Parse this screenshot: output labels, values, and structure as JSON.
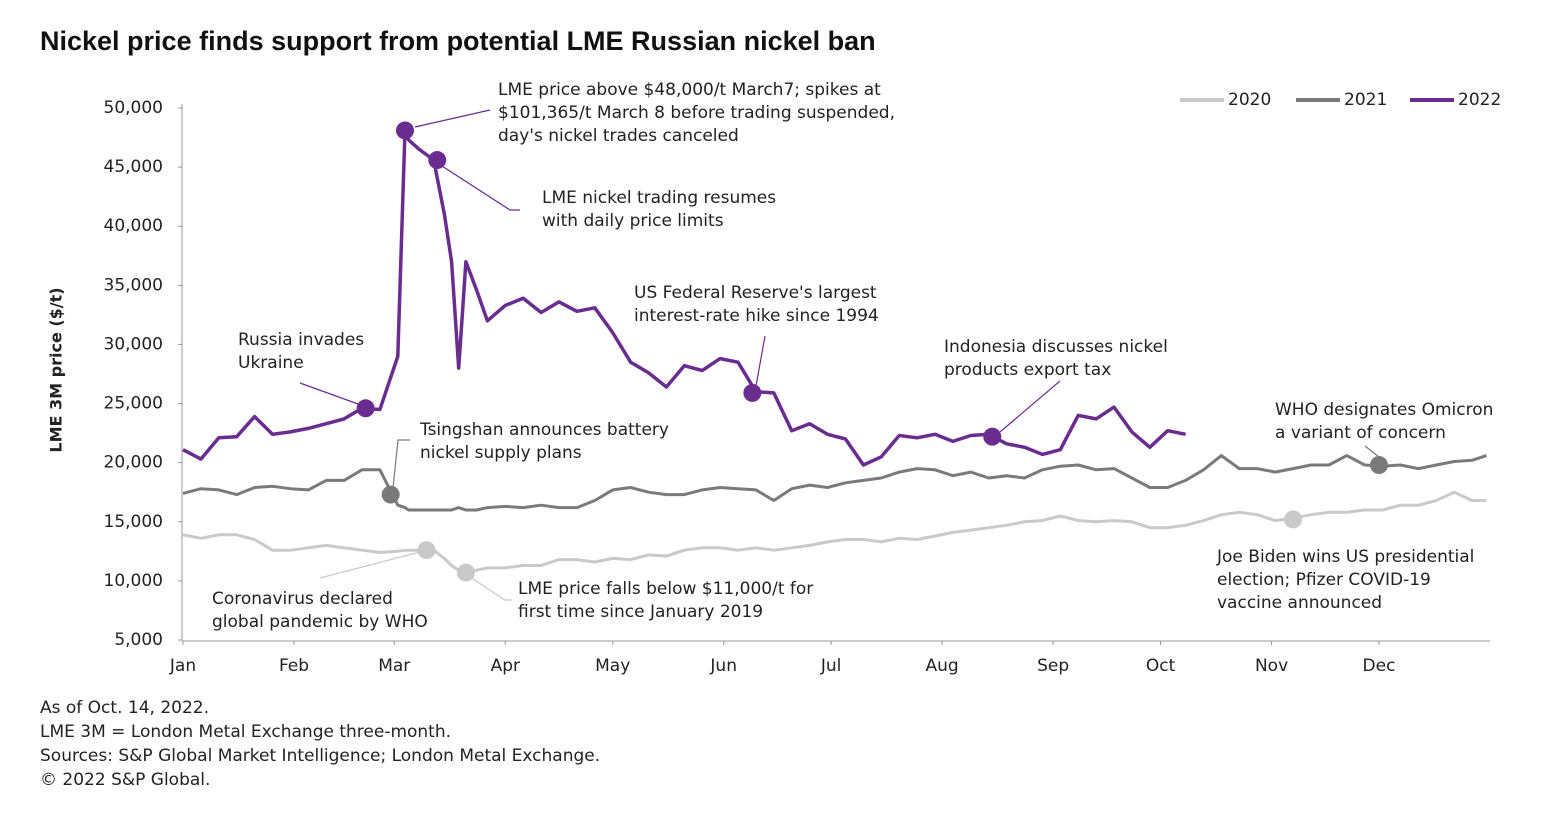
{
  "chart_data": {
    "type": "line",
    "title": "Nickel price finds support from potential LME Russian nickel ban",
    "y_label": "LME 3M price ($/t)",
    "x": [
      1,
      6,
      11,
      16,
      21,
      26,
      31,
      36,
      41,
      46,
      51,
      56,
      61,
      63,
      64,
      67,
      71,
      74,
      76,
      78,
      80,
      83,
      86,
      91,
      96,
      101,
      106,
      111,
      116,
      121,
      126,
      131,
      136,
      141,
      146,
      151,
      156,
      161,
      166,
      171,
      176,
      181,
      186,
      191,
      196,
      201,
      206,
      211,
      216,
      221,
      226,
      231,
      236,
      241,
      246,
      251,
      256,
      261,
      266,
      271,
      276,
      281,
      286,
      291,
      296,
      301,
      306,
      311,
      316,
      321,
      326,
      331,
      336,
      341,
      346,
      351,
      356,
      361,
      365
    ],
    "xlim": [
      1,
      366
    ],
    "xticks": [
      {
        "value": 1,
        "label": "Jan"
      },
      {
        "value": 32,
        "label": "Feb"
      },
      {
        "value": 60,
        "label": "Mar"
      },
      {
        "value": 91,
        "label": "Apr"
      },
      {
        "value": 121,
        "label": "May"
      },
      {
        "value": 152,
        "label": "Jun"
      },
      {
        "value": 182,
        "label": "Jul"
      },
      {
        "value": 213,
        "label": "Aug"
      },
      {
        "value": 244,
        "label": "Sep"
      },
      {
        "value": 274,
        "label": "Oct"
      },
      {
        "value": 305,
        "label": "Nov"
      },
      {
        "value": 335,
        "label": "Dec"
      }
    ],
    "ylim": [
      5000,
      50000
    ],
    "yticks": [
      {
        "value": 5000,
        "label": "5,000"
      },
      {
        "value": 10000,
        "label": "10,000"
      },
      {
        "value": 15000,
        "label": "15,000"
      },
      {
        "value": 20000,
        "label": "20,000"
      },
      {
        "value": 25000,
        "label": "25,000"
      },
      {
        "value": 30000,
        "label": "30,000"
      },
      {
        "value": 35000,
        "label": "35,000"
      },
      {
        "value": 40000,
        "label": "40,000"
      },
      {
        "value": 45000,
        "label": "45,000"
      },
      {
        "value": 50000,
        "label": "50,000"
      }
    ],
    "grid": false,
    "legend": "top-right",
    "series": [
      {
        "name": "2020",
        "color": "#c9c9c9",
        "text_color": "#b0b0b0",
        "values": [
          13900,
          13600,
          13900,
          13900,
          13500,
          12600,
          12600,
          12800,
          13000,
          12800,
          12600,
          12400,
          12500,
          12600,
          12600,
          12600,
          12600,
          11900,
          11300,
          10900,
          10700,
          10900,
          11100,
          11100,
          11300,
          11300,
          11800,
          11800,
          11600,
          11900,
          11800,
          12200,
          12100,
          12600,
          12800,
          12800,
          12600,
          12800,
          12600,
          12800,
          13000,
          13300,
          13500,
          13500,
          13300,
          13600,
          13500,
          13800,
          14100,
          14300,
          14500,
          14700,
          15000,
          15100,
          15500,
          15100,
          15000,
          15100,
          15000,
          14500,
          14500,
          14700,
          15100,
          15600,
          15800,
          15600,
          15100,
          15300,
          15600,
          15800,
          15800,
          16000,
          16000,
          16400,
          16400,
          16800,
          17500,
          16800,
          16800
        ]
      },
      {
        "name": "2021",
        "color": "#7a7a7a",
        "text_color": "#7f8a7f",
        "values": [
          17400,
          17800,
          17700,
          17300,
          17900,
          18000,
          17800,
          17700,
          18500,
          18500,
          19400,
          19400,
          16400,
          16200,
          16000,
          16000,
          16000,
          16000,
          16000,
          16200,
          16000,
          16000,
          16200,
          16300,
          16200,
          16400,
          16200,
          16200,
          16800,
          17700,
          17900,
          17500,
          17300,
          17300,
          17700,
          17900,
          17800,
          17700,
          16800,
          17800,
          18100,
          17900,
          18300,
          18500,
          18700,
          19200,
          19500,
          19400,
          18900,
          19200,
          18700,
          18900,
          18700,
          19400,
          19700,
          19800,
          19400,
          19500,
          18700,
          17900,
          17900,
          18500,
          19400,
          20600,
          19500,
          19500,
          19200,
          19500,
          19800,
          19800,
          20600,
          19800,
          19700,
          19800,
          19500,
          19800,
          20100,
          20200,
          20600
        ]
      },
      {
        "name": "2022",
        "color": "#6a2c8e",
        "text_color": "#6a2c8e",
        "values": [
          21100,
          20300,
          22100,
          22200,
          23900,
          22400,
          22600,
          22900,
          23300,
          23700,
          24600,
          24500,
          29000,
          48100,
          47300,
          46500,
          45600,
          41000,
          37000,
          28000,
          37000,
          34600,
          32000,
          33300,
          33900,
          32700,
          33600,
          32800,
          33100,
          31000,
          28500,
          27600,
          26400,
          28200,
          27800,
          28800,
          28500,
          26000,
          25900,
          22700,
          23300,
          22400,
          22000,
          19800,
          20500,
          22300,
          22100,
          22400,
          21800,
          22300,
          22400,
          21600,
          21300,
          20700,
          21100,
          24000,
          23700,
          24700,
          22600,
          21300,
          22700,
          22400,
          null,
          null,
          null,
          null,
          null,
          null,
          null,
          null,
          null,
          null,
          null,
          null,
          null,
          null,
          null,
          null,
          null
        ]
      }
    ],
    "annotations": [
      {
        "series": 2,
        "x": 52,
        "y": 24600,
        "text": [
          "Russia invades",
          "Ukraine"
        ]
      },
      {
        "series": 2,
        "x": 63,
        "y": 48100,
        "text": [
          "LME price above $48,000/t March7; spikes at",
          "$101,365/t March 8 before trading suspended,",
          "day's nickel trades canceled"
        ]
      },
      {
        "series": 2,
        "x": 72,
        "y": 45600,
        "text": [
          "LME nickel trading resumes",
          "with daily price limits"
        ]
      },
      {
        "series": 2,
        "x": 160,
        "y": 25900,
        "text": [
          "US Federal Reserve's largest",
          "interest-rate hike since 1994"
        ]
      },
      {
        "series": 2,
        "x": 227,
        "y": 22200,
        "text": [
          "Indonesia discusses nickel",
          "products export tax"
        ]
      },
      {
        "series": 1,
        "x": 59,
        "y": 17300,
        "text": [
          "Tsingshan announces battery",
          "nickel supply plans"
        ]
      },
      {
        "series": 1,
        "x": 335,
        "y": 19800,
        "text": [
          "WHO designates Omicron",
          "a variant of concern"
        ]
      },
      {
        "series": 0,
        "x": 69,
        "y": 12600,
        "text": [
          "Coronavirus declared",
          "global pandemic by WHO"
        ]
      },
      {
        "series": 0,
        "x": 80,
        "y": 10700,
        "text": [
          "LME price falls below $11,000/t for",
          "first time since January 2019"
        ]
      },
      {
        "series": 0,
        "x": 311,
        "y": 15200,
        "text": [
          "Joe Biden wins US presidential",
          "election; Pfizer COVID-19",
          "vaccine announced"
        ]
      }
    ],
    "notes": [
      "As of Oct. 14, 2022.",
      "LME 3M = London Metal Exchange three-month.",
      "Sources: S&P Global Market Intelligence; London Metal Exchange.",
      "© 2022 S&P Global."
    ]
  }
}
